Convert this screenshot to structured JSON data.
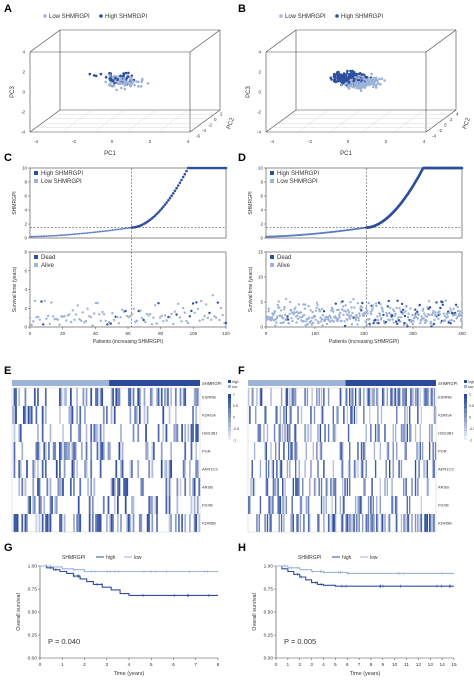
{
  "colors": {
    "high": "#2f4f9e",
    "low": "#9db3d8",
    "line": "#5b7fc4",
    "heat_dark": "#2b4a9c",
    "heat_light": "#ffffff",
    "axis": "#333333",
    "grid": "#cfcfcf"
  },
  "chart_data": [
    {
      "panel": "A",
      "type": "scatter",
      "legend": [
        "Low SHMRGPI",
        "High SHMRGPI"
      ],
      "xlabel": "PC1",
      "ylabel": "PC3",
      "zlabel": "PC2",
      "xticks": [
        "-4",
        "-2",
        "0",
        "2",
        "4"
      ],
      "yticks": [
        "-4",
        "-2",
        "0",
        "2",
        "4"
      ],
      "zticks": [
        "-6",
        "-4",
        "-2",
        "0",
        "2"
      ],
      "n_points": 120
    },
    {
      "panel": "B",
      "type": "scatter",
      "legend": [
        "Low SHMRGPI",
        "High SHMRGPI"
      ],
      "xlabel": "PC1",
      "ylabel": "PC3",
      "zlabel": "PC2",
      "xticks": [
        "-4",
        "-2",
        "0",
        "2",
        "4"
      ],
      "yticks": [
        "-4",
        "-2",
        "0",
        "2",
        "4"
      ],
      "zticks": [
        "-4",
        "-2",
        "0",
        "2",
        "4"
      ],
      "n_points": 400
    },
    {
      "panel": "C",
      "type": "scatter",
      "legend": [
        "High SHMRGPI",
        "Low SHMRGPI"
      ],
      "ylabel": "SHMRGPI",
      "xlim": [
        0,
        120
      ],
      "ylim": [
        0,
        10
      ],
      "yticks": [
        "0",
        "2",
        "4",
        "6",
        "8",
        "10"
      ],
      "cutoff_index": 62,
      "cutoff_value": 1.5,
      "n": 120
    },
    {
      "panel": "C-survival",
      "type": "scatter",
      "legend": [
        "Dead",
        "Alive"
      ],
      "xlabel": "Patients (increasing SHMRGPI)",
      "ylabel": "Survival time (years)",
      "xlim": [
        0,
        120
      ],
      "ylim": [
        0,
        8
      ],
      "xticks": [
        "0",
        "20",
        "40",
        "60",
        "80",
        "100",
        "120"
      ],
      "yticks": [
        "0",
        "2",
        "4",
        "6",
        "8"
      ]
    },
    {
      "panel": "D",
      "type": "scatter",
      "legend": [
        "High SHMRGPI",
        "Low SHMRGPI"
      ],
      "ylabel": "SHMRGPI",
      "xlim": [
        0,
        400
      ],
      "ylim": [
        0,
        10
      ],
      "yticks": [
        "0",
        "2",
        "4",
        "6",
        "8",
        "10"
      ],
      "cutoff_index": 205,
      "cutoff_value": 1.5,
      "n": 400
    },
    {
      "panel": "D-survival",
      "type": "scatter",
      "legend": [
        "Dead",
        "Alive"
      ],
      "xlabel": "Patients (increasing SHMRGPI)",
      "ylabel": "Survival time (years)",
      "xlim": [
        0,
        400
      ],
      "ylim": [
        0,
        15
      ],
      "xticks": [
        "0",
        "100",
        "200",
        "300",
        "400"
      ],
      "yticks": [
        "0",
        "5",
        "10",
        "15"
      ]
    },
    {
      "panel": "E",
      "type": "heatmap",
      "annotation_label": "SHMRGPI",
      "genes": [
        "ESRRB",
        "KDM1A",
        "HSD3B1",
        "PGR",
        "AKR1C3",
        "ARSB",
        "FDXB",
        "KDM5B"
      ],
      "legend_groups": [
        "low",
        "high"
      ],
      "scale_ticks": [
        "1",
        "0.5",
        "0",
        "-0.5",
        "-1"
      ],
      "n_samples": 120
    },
    {
      "panel": "F",
      "type": "heatmap",
      "annotation_label": "SHMRGPI",
      "genes": [
        "ESRRB",
        "KDM1A",
        "HSD3B1",
        "PGR",
        "AKR1C3",
        "ARSB",
        "FDXB",
        "KDM5B"
      ],
      "legend_groups": [
        "low",
        "high"
      ],
      "scale_ticks": [
        "1",
        "0.5",
        "0",
        "-0.5",
        "-1"
      ],
      "n_samples": 400
    },
    {
      "panel": "G",
      "type": "line",
      "legend_title": "SHMRGPI",
      "series": [
        {
          "name": "high",
          "x": [
            0,
            0.3,
            0.6,
            0.9,
            1.2,
            1.5,
            1.8,
            2.1,
            2.4,
            2.8,
            3.2,
            3.6,
            4.0,
            8.0
          ],
          "y": [
            1.0,
            0.98,
            0.96,
            0.94,
            0.92,
            0.89,
            0.86,
            0.83,
            0.8,
            0.77,
            0.74,
            0.7,
            0.68,
            0.68
          ]
        },
        {
          "name": "low",
          "x": [
            0,
            0.5,
            1.0,
            1.5,
            2.0,
            8.0
          ],
          "y": [
            1.0,
            0.99,
            0.97,
            0.96,
            0.94,
            0.94
          ]
        }
      ],
      "xlabel": "Time (years)",
      "ylabel": "Overall survival",
      "xlim": [
        0,
        8
      ],
      "ylim": [
        0,
        1
      ],
      "xticks": [
        "0",
        "1",
        "2",
        "3",
        "4",
        "5",
        "6",
        "7",
        "8"
      ],
      "yticks": [
        "0.00",
        "0.25",
        "0.50",
        "0.75",
        "1.00"
      ],
      "pvalue": "P = 0.040"
    },
    {
      "panel": "H",
      "type": "line",
      "legend_title": "SHMRGPI",
      "series": [
        {
          "name": "high",
          "x": [
            0,
            0.5,
            1,
            1.5,
            2,
            2.5,
            3,
            3.5,
            4,
            5,
            15
          ],
          "y": [
            1.0,
            0.97,
            0.94,
            0.91,
            0.88,
            0.85,
            0.82,
            0.8,
            0.79,
            0.78,
            0.78
          ]
        },
        {
          "name": "low",
          "x": [
            0,
            1,
            2,
            3,
            4,
            6,
            15
          ],
          "y": [
            1.0,
            0.98,
            0.96,
            0.94,
            0.93,
            0.92,
            0.92
          ]
        }
      ],
      "xlabel": "Time (years)",
      "ylabel": "Overall survival",
      "xlim": [
        0,
        15
      ],
      "ylim": [
        0,
        1
      ],
      "xticks": [
        "0",
        "1",
        "2",
        "3",
        "4",
        "5",
        "6",
        "7",
        "8",
        "9",
        "10",
        "11",
        "12",
        "13",
        "14",
        "15"
      ],
      "yticks": [
        "0.00",
        "0.25",
        "0.50",
        "0.75",
        "1.00"
      ],
      "pvalue": "P = 0.005"
    }
  ],
  "panel_letters": [
    "A",
    "B",
    "C",
    "D",
    "E",
    "F",
    "G",
    "H"
  ]
}
